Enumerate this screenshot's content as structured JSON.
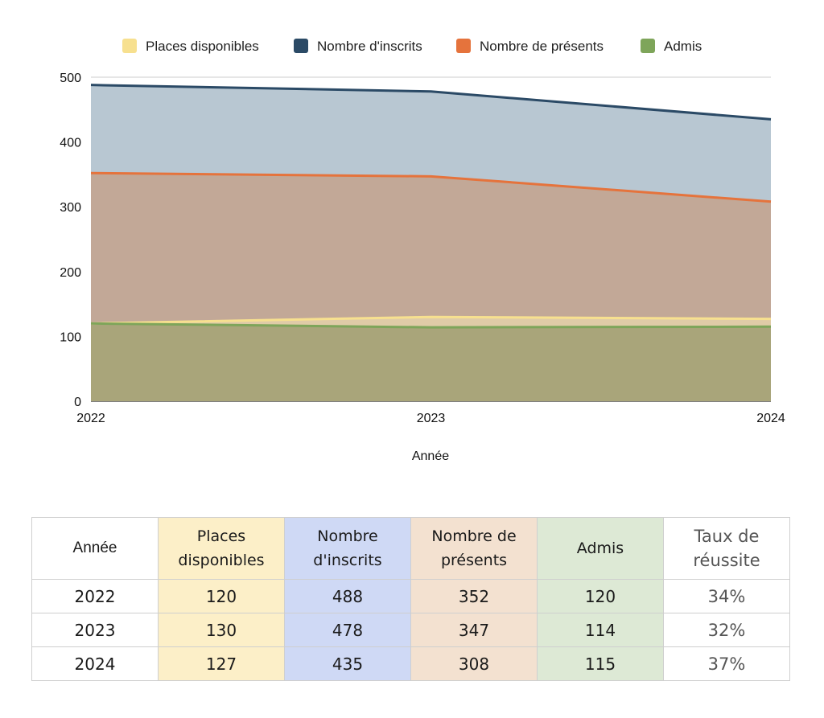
{
  "chart_data": {
    "type": "area",
    "title": "",
    "xlabel": "Année",
    "ylabel": "",
    "x": [
      "2022",
      "2023",
      "2024"
    ],
    "ylim": [
      0,
      500
    ],
    "yticks": [
      "0",
      "100",
      "200",
      "300",
      "400",
      "500"
    ],
    "grid": true,
    "legend_position": "top",
    "series": [
      {
        "name": "Places disponibles",
        "values": [
          120,
          130,
          127
        ],
        "color": "#f7e08f"
      },
      {
        "name": "Nombre d'inscrits",
        "values": [
          488,
          478,
          435
        ],
        "color": "#2b4a66"
      },
      {
        "name": "Nombre de présents",
        "values": [
          352,
          347,
          308
        ],
        "color": "#e5733c"
      },
      {
        "name": "Admis",
        "values": [
          120,
          114,
          115
        ],
        "color": "#7ea55a"
      }
    ]
  },
  "table": {
    "headers": [
      "Année",
      "Places disponibles",
      "Nombre d'inscrits",
      "Nombre de présents",
      "Admis",
      "Taux de réussite"
    ],
    "rows": [
      [
        "2022",
        "120",
        "488",
        "352",
        "120",
        "34%"
      ],
      [
        "2023",
        "130",
        "478",
        "347",
        "114",
        "32%"
      ],
      [
        "2024",
        "127",
        "435",
        "308",
        "115",
        "37%"
      ]
    ]
  }
}
